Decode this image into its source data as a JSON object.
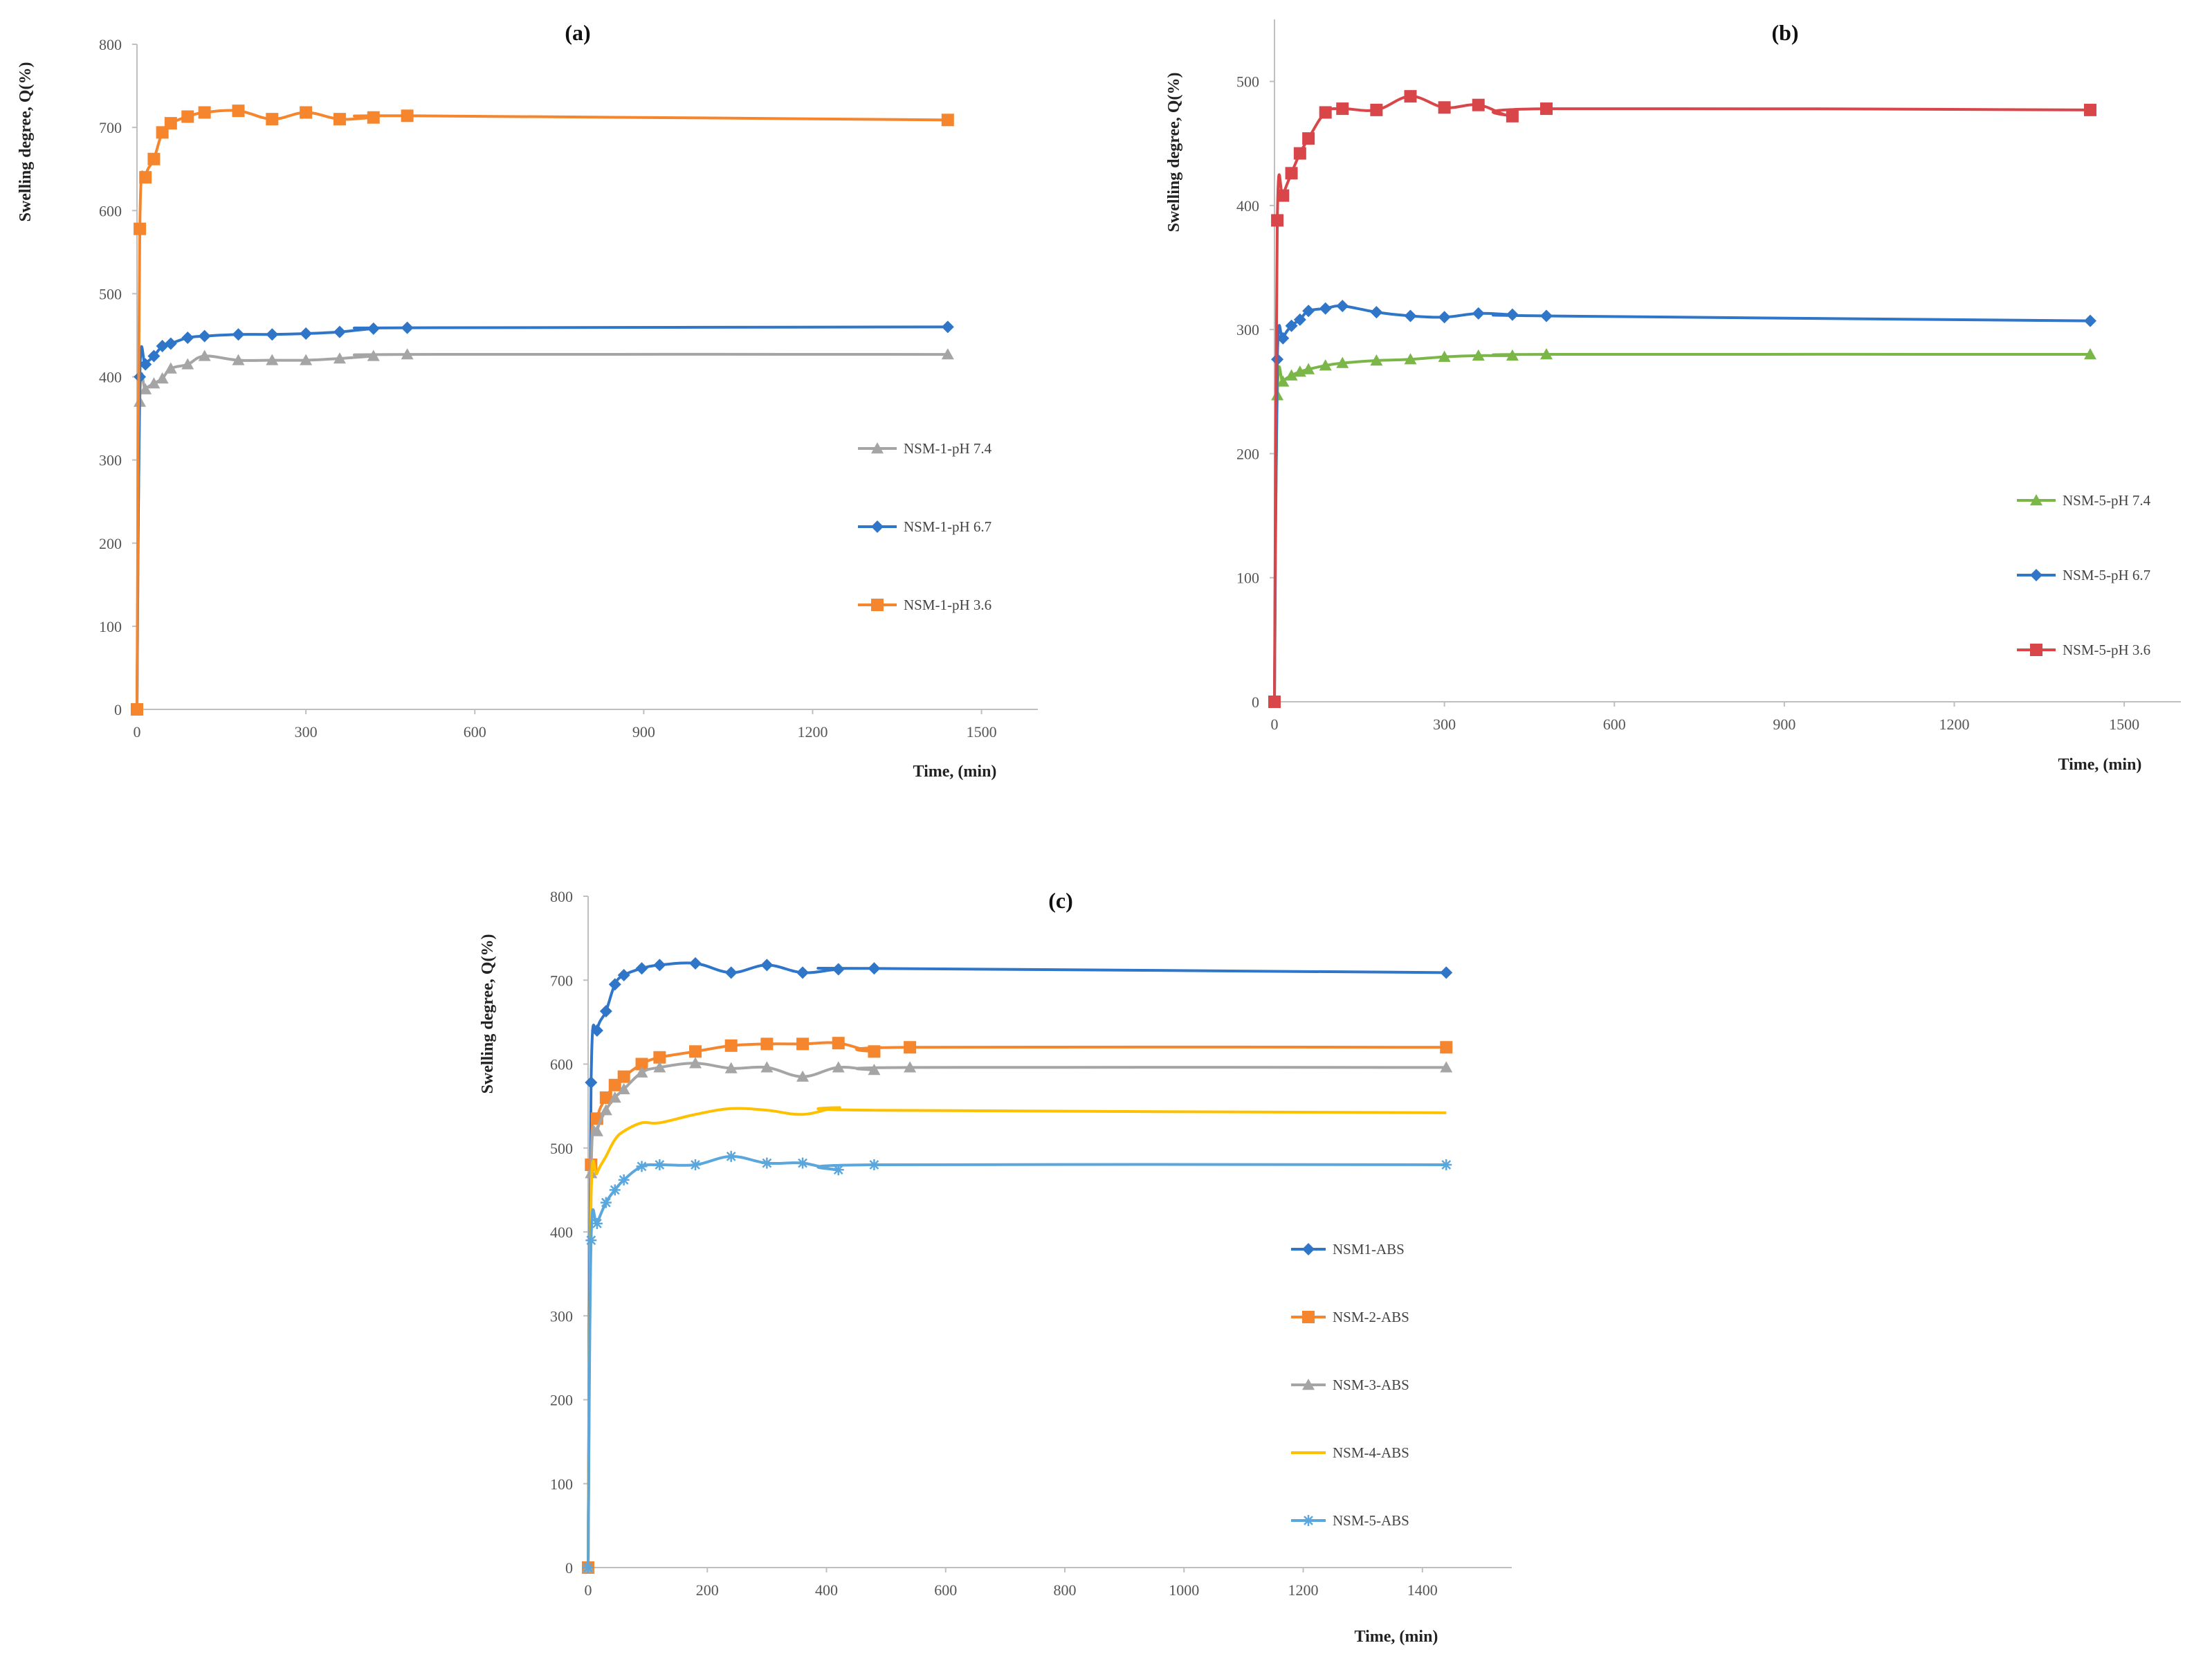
{
  "chart_data": [
    {
      "type": "line",
      "title": "(a)",
      "xlabel": "Time, (min)",
      "ylabel": "Swelling degree, Q(%)",
      "xlim": [
        0,
        1600
      ],
      "ylim": [
        0,
        800
      ],
      "xticks": [
        0,
        300,
        600,
        900,
        1200,
        1500
      ],
      "yticks": [
        0,
        100,
        200,
        300,
        400,
        500,
        600,
        700,
        800
      ],
      "legend_position": "right",
      "series": [
        {
          "name": "NSM-1-pH 7.4",
          "color": "#a5a5a5",
          "marker": "triangle",
          "x": [
            0,
            5,
            15,
            30,
            45,
            60,
            90,
            120,
            180,
            240,
            300,
            360,
            420,
            480,
            1440
          ],
          "y": [
            0,
            370,
            385,
            392,
            398,
            410,
            415,
            425,
            420,
            420,
            420,
            422,
            425,
            427,
            427
          ]
        },
        {
          "name": "NSM-1-pH 6.7",
          "color": "#2f75c8",
          "marker": "diamond",
          "x": [
            0,
            5,
            15,
            30,
            45,
            60,
            90,
            120,
            180,
            240,
            300,
            360,
            420,
            480,
            1440
          ],
          "y": [
            0,
            400,
            415,
            425,
            437,
            440,
            447,
            449,
            451,
            451,
            452,
            454,
            458,
            459,
            460
          ]
        },
        {
          "name": "NSM-1-pH 3.6",
          "color": "#f5862d",
          "marker": "square",
          "x": [
            0,
            5,
            15,
            30,
            45,
            60,
            90,
            120,
            180,
            240,
            300,
            360,
            420,
            480,
            1440
          ],
          "y": [
            0,
            578,
            640,
            662,
            694,
            705,
            713,
            718,
            720,
            710,
            718,
            710,
            712,
            714,
            709
          ]
        }
      ]
    },
    {
      "type": "line",
      "title": "(b)",
      "xlabel": "Time, (min)",
      "ylabel": "Swelling degree, Q(%)",
      "xlim": [
        0,
        1600
      ],
      "ylim": [
        0,
        550
      ],
      "xticks": [
        0,
        300,
        600,
        900,
        1200,
        1500
      ],
      "yticks": [
        0,
        100,
        200,
        300,
        400,
        500
      ],
      "legend_position": "right",
      "series": [
        {
          "name": "NSM-5-pH 7.4",
          "color": "#7ab648",
          "marker": "triangle",
          "x": [
            0,
            5,
            15,
            30,
            45,
            60,
            90,
            120,
            180,
            240,
            300,
            360,
            420,
            480,
            1440
          ],
          "y": [
            0,
            247,
            258,
            263,
            266,
            268,
            271,
            273,
            275,
            276,
            278,
            279,
            279,
            280,
            280
          ]
        },
        {
          "name": "NSM-5-pH 6.7",
          "color": "#2f75c8",
          "marker": "diamond",
          "x": [
            0,
            5,
            15,
            30,
            45,
            60,
            90,
            120,
            180,
            240,
            300,
            360,
            420,
            480,
            1440
          ],
          "y": [
            0,
            276,
            293,
            303,
            308,
            315,
            317,
            319,
            314,
            311,
            310,
            313,
            312,
            311,
            307
          ]
        },
        {
          "name": "NSM-5-pH 3.6",
          "color": "#d9464a",
          "marker": "square",
          "x": [
            0,
            5,
            15,
            30,
            45,
            60,
            90,
            120,
            180,
            240,
            300,
            360,
            420,
            480,
            1440
          ],
          "y": [
            0,
            388,
            408,
            426,
            442,
            454,
            475,
            478,
            477,
            488,
            479,
            481,
            472,
            478,
            477
          ]
        }
      ]
    },
    {
      "type": "line",
      "title": "(c)",
      "xlabel": "Time, (min)",
      "ylabel": "Swelling degree, Q(%)",
      "xlim": [
        0,
        1550
      ],
      "ylim": [
        0,
        800
      ],
      "xticks": [
        0,
        200,
        400,
        600,
        800,
        1000,
        1200,
        1400
      ],
      "yticks": [
        0,
        100,
        200,
        300,
        400,
        500,
        600,
        700,
        800
      ],
      "legend_position": "right",
      "series": [
        {
          "name": "NSM1-ABS",
          "color": "#2f75c8",
          "marker": "diamond",
          "x": [
            0,
            5,
            15,
            30,
            45,
            60,
            90,
            120,
            180,
            240,
            300,
            360,
            420,
            480,
            1440
          ],
          "y": [
            0,
            578,
            640,
            663,
            695,
            706,
            714,
            718,
            720,
            709,
            718,
            709,
            713,
            714,
            709
          ]
        },
        {
          "name": "NSM-2-ABS",
          "color": "#f5862d",
          "marker": "square",
          "x": [
            0,
            5,
            15,
            30,
            45,
            60,
            90,
            120,
            180,
            240,
            300,
            360,
            420,
            480,
            540,
            1440
          ],
          "y": [
            0,
            480,
            535,
            560,
            575,
            585,
            600,
            608,
            615,
            622,
            624,
            624,
            625,
            615,
            620,
            620
          ]
        },
        {
          "name": "NSM-3-ABS",
          "color": "#a5a5a5",
          "marker": "triangle",
          "x": [
            0,
            5,
            15,
            30,
            45,
            60,
            90,
            120,
            180,
            240,
            300,
            360,
            420,
            480,
            540,
            1440
          ],
          "y": [
            0,
            470,
            520,
            545,
            560,
            570,
            590,
            596,
            601,
            595,
            596,
            585,
            596,
            593,
            596,
            596
          ]
        },
        {
          "name": "NSM-4-ABS",
          "color": "#ffc000",
          "marker": "line",
          "x": [
            0,
            5,
            15,
            30,
            45,
            60,
            90,
            120,
            180,
            240,
            300,
            360,
            420,
            480,
            1440
          ],
          "y": [
            0,
            440,
            470,
            490,
            510,
            520,
            530,
            530,
            540,
            547,
            545,
            540,
            548,
            545,
            542
          ]
        },
        {
          "name": "NSM-5-ABS",
          "color": "#5aa7dd",
          "marker": "star",
          "x": [
            0,
            5,
            15,
            30,
            45,
            60,
            90,
            120,
            180,
            240,
            300,
            360,
            420,
            480,
            1440
          ],
          "y": [
            0,
            390,
            410,
            435,
            450,
            462,
            478,
            480,
            480,
            490,
            482,
            482,
            474,
            480,
            480
          ]
        }
      ]
    }
  ]
}
